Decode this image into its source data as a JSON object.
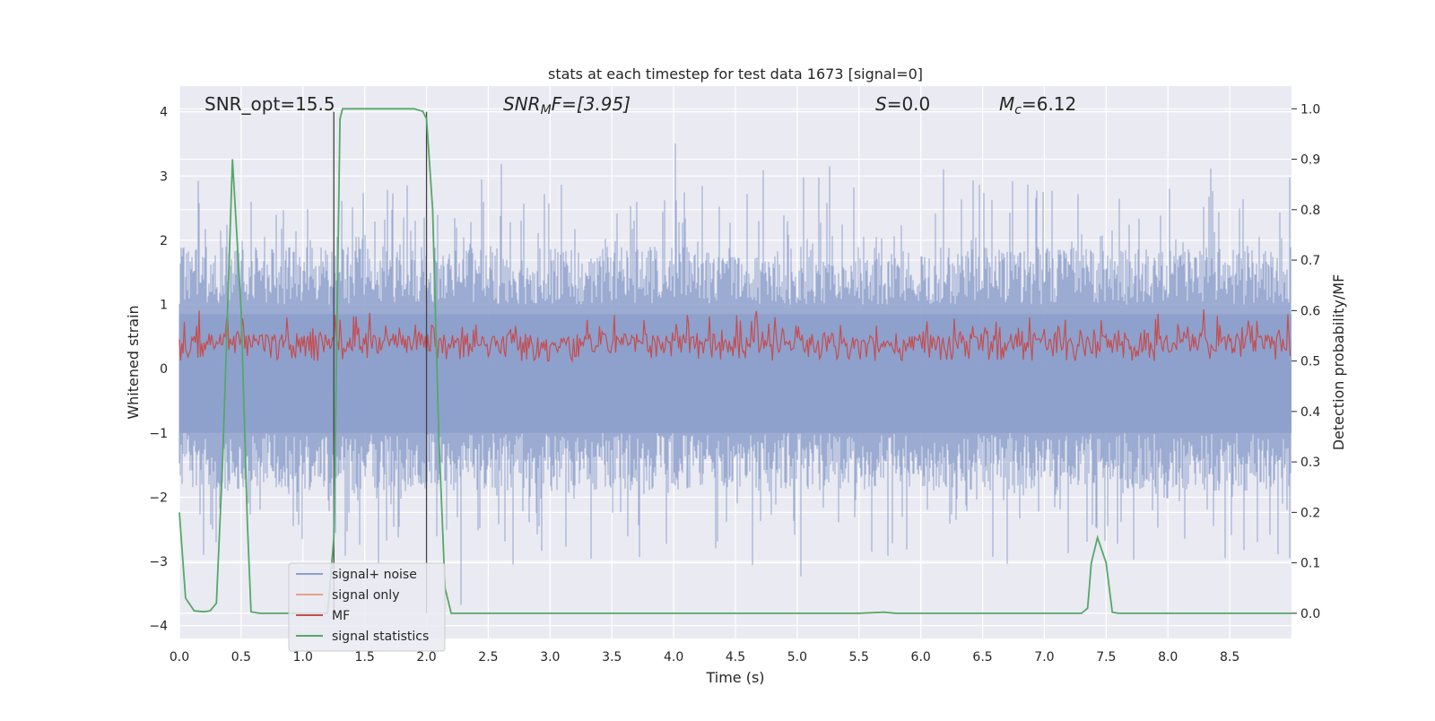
{
  "chart_data": {
    "type": "line",
    "title": "stats at each timestep for test data 1673 [signal=0]",
    "xlabel": "Time (s)",
    "ylabel": "Whitened strain",
    "ylabel_right": "Detection probability/MF",
    "xlim": [
      0.0,
      9.0
    ],
    "ylim": [
      -4.2,
      4.4
    ],
    "ylim_right": [
      -0.05,
      1.045
    ],
    "x_ticks": [
      "0.0",
      "0.5",
      "1.0",
      "1.5",
      "2.0",
      "2.5",
      "3.0",
      "3.5",
      "4.0",
      "4.5",
      "5.0",
      "5.5",
      "6.0",
      "6.5",
      "7.0",
      "7.5",
      "8.0",
      "8.5"
    ],
    "y_ticks": [
      "4",
      "3",
      "2",
      "1",
      "0",
      "−1",
      "−2",
      "−3",
      "−4"
    ],
    "y_right_ticks": [
      "1.0",
      "0.9",
      "0.8",
      "0.7",
      "0.6",
      "0.5",
      "0.4",
      "0.3",
      "0.2",
      "0.1",
      "0.0"
    ],
    "grid": true,
    "legend_position": "lower-left",
    "annotations": {
      "snr_opt": "SNR_opt=15.5",
      "snr_mf_main": "SNR",
      "snr_mf_sub": "M",
      "snr_mf_tail": "F=[3.95]",
      "s_var": "S",
      "s_val": "=0.0",
      "mc_var": "M",
      "mc_sub": "c",
      "mc_val": "=6.12"
    },
    "vertical_lines_x": [
      1.25,
      2.0
    ],
    "series": [
      {
        "name": "signal+ noise",
        "color": "#8da0cb",
        "description_of_values": "dense noise roughly between -2.5 and 3 with spikes to about ±4",
        "amplitude_envelope": [
          2.0,
          2.0
        ]
      },
      {
        "name": "signal only",
        "color": "#e8a183",
        "values": []
      },
      {
        "name": "MF",
        "color": "#c44e52",
        "axis": "right",
        "range": [
          0.5,
          0.6
        ]
      },
      {
        "name": "signal statistics",
        "color": "#55a868",
        "axis": "right",
        "x": [
          0.0,
          0.05,
          0.12,
          0.2,
          0.25,
          0.3,
          0.35,
          0.43,
          0.5,
          0.55,
          0.58,
          0.65,
          0.7,
          1.2,
          1.25,
          1.3,
          1.32,
          1.5,
          1.9,
          1.97,
          2.0,
          2.05,
          2.1,
          2.15,
          2.2,
          2.25,
          5.5,
          5.7,
          5.8,
          7.3,
          7.35,
          7.38,
          7.43,
          7.5,
          7.55,
          7.6,
          9.0
        ],
        "values": [
          0.2,
          0.03,
          0.005,
          0.003,
          0.005,
          0.02,
          0.3,
          0.9,
          0.6,
          0.18,
          0.003,
          0.0,
          0.0,
          0.0,
          0.15,
          0.98,
          1.0,
          1.0,
          1.0,
          0.995,
          0.98,
          0.8,
          0.35,
          0.05,
          0.0,
          0.0,
          0.0,
          0.002,
          0.0,
          0.0,
          0.01,
          0.1,
          0.15,
          0.1,
          0.002,
          0.0,
          0.0
        ]
      }
    ]
  }
}
